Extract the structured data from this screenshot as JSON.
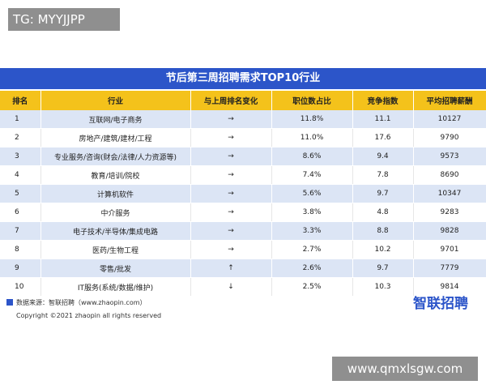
{
  "watermark_top": "TG: MYYJJPP",
  "table": {
    "title": "节后第三周招聘需求TOP10行业",
    "header": [
      "排名",
      "行业",
      "与上周排名变化",
      "职位数占比",
      "竞争指数",
      "平均招聘薪酬"
    ],
    "rows": [
      [
        "1",
        "互联网/电子商务",
        "→",
        "11.8%",
        "11.1",
        "10127"
      ],
      [
        "2",
        "房地产/建筑/建材/工程",
        "→",
        "11.0%",
        "17.6",
        "9790"
      ],
      [
        "3",
        "专业服务/咨询(财会/法律/人力资源等)",
        "→",
        "8.6%",
        "9.4",
        "9573"
      ],
      [
        "4",
        "教育/培训/院校",
        "→",
        "7.4%",
        "7.8",
        "8690"
      ],
      [
        "5",
        "计算机软件",
        "→",
        "5.6%",
        "9.7",
        "10347"
      ],
      [
        "6",
        "中介服务",
        "→",
        "3.8%",
        "4.8",
        "9283"
      ],
      [
        "7",
        "电子技术/半导体/集成电路",
        "→",
        "3.3%",
        "8.8",
        "9828"
      ],
      [
        "8",
        "医药/生物工程",
        "→",
        "2.7%",
        "10.2",
        "9701"
      ],
      [
        "9",
        "零售/批发",
        "↑",
        "2.6%",
        "9.7",
        "7779"
      ],
      [
        "10",
        "IT服务(系统/数据/维护)",
        "↓",
        "2.5%",
        "10.3",
        "9814"
      ]
    ]
  },
  "footer": {
    "source": "数据来源：智联招聘（www.zhaopin.com）",
    "copyright": "Copyright ©2021 zhaopin all rights reserved",
    "logo": "智联招聘"
  },
  "watermark_bottom": "www.qmxlsgw.com"
}
